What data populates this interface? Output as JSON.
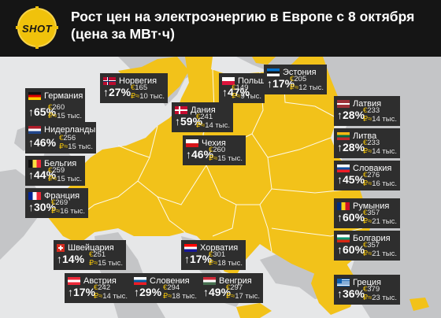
{
  "title_line1": "Рост цен на электроэнергию в Европе с 8 октября",
  "title_line2": "(цена за МВт·ч)",
  "logo_text": "SHOT",
  "accent_color": "#f0c20b",
  "euro_symbol": "€",
  "approx_symbol": "₽≈",
  "arrow_symbol": "↑",
  "countries": [
    {
      "id": "germany",
      "name": "Германия",
      "pct": "65%",
      "eur": "260",
      "rub": "15 тыс."
    },
    {
      "id": "norway",
      "name": "Норвегия",
      "pct": "27%",
      "eur": "165",
      "rub": "10 тыс."
    },
    {
      "id": "poland",
      "name": "Польша",
      "pct": "47%",
      "eur": "149",
      "rub": "9 тыс."
    },
    {
      "id": "estonia",
      "name": "Эстония",
      "pct": "17%",
      "eur": "205",
      "rub": "12 тыс."
    },
    {
      "id": "latvia",
      "name": "Латвия",
      "pct": "28%",
      "eur": "233",
      "rub": "14 тыс."
    },
    {
      "id": "lithuania",
      "name": "Литва",
      "pct": "28%",
      "eur": "233",
      "rub": "14 тыс."
    },
    {
      "id": "slovakia",
      "name": "Словакия",
      "pct": "45%",
      "eur": "276",
      "rub": "16 тыс."
    },
    {
      "id": "denmark",
      "name": "Дания",
      "pct": "59%",
      "eur": "241",
      "rub": "14 тыс."
    },
    {
      "id": "czechia",
      "name": "Чехия",
      "pct": "46%",
      "eur": "260",
      "rub": "15 тыс."
    },
    {
      "id": "netherlands",
      "name": "Нидерланды",
      "pct": "46%",
      "eur": "256",
      "rub": "15 тыс."
    },
    {
      "id": "belgium",
      "name": "Бельгия",
      "pct": "44%",
      "eur": "259",
      "rub": "15 тыс."
    },
    {
      "id": "france",
      "name": "Франция",
      "pct": "30%",
      "eur": "269",
      "rub": "16 тыс."
    },
    {
      "id": "romania",
      "name": "Румыния",
      "pct": "60%",
      "eur": "357",
      "rub": "21 тыс."
    },
    {
      "id": "bulgaria",
      "name": "Болгария",
      "pct": "60%",
      "eur": "357",
      "rub": "21 тыс."
    },
    {
      "id": "switzerland",
      "name": "Швейцария",
      "pct": "14%",
      "eur": "251",
      "rub": "15 тыс."
    },
    {
      "id": "croatia",
      "name": "Хорватия",
      "pct": "17%",
      "eur": "301",
      "rub": "18 тыс."
    },
    {
      "id": "austria",
      "name": "Австрия",
      "pct": "17%",
      "eur": "242",
      "rub": "14 тыс."
    },
    {
      "id": "slovenia",
      "name": "Словения",
      "pct": "29%",
      "eur": "294",
      "rub": "18 тыс."
    },
    {
      "id": "hungary",
      "name": "Венгрия",
      "pct": "49%",
      "eur": "297",
      "rub": "17 тыс."
    },
    {
      "id": "greece",
      "name": "Греция",
      "pct": "36%",
      "eur": "379",
      "rub": "23 тыс."
    }
  ]
}
